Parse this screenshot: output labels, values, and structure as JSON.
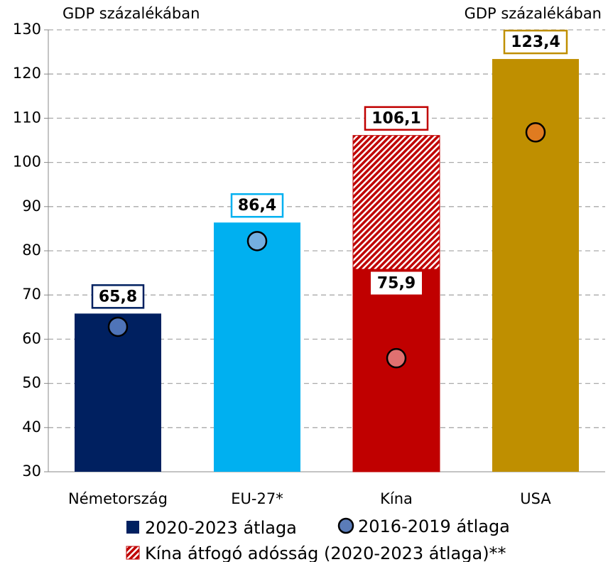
{
  "chart_data": {
    "type": "bar",
    "annotations": [
      "GDP százalékában",
      "GDP százalékában"
    ],
    "categories": [
      "Németország",
      "EU-27*",
      "Kína",
      "USA"
    ],
    "series": [
      {
        "name": "2020-2023 átlaga",
        "kind": "bar",
        "color": "#002060",
        "colors": [
          "#002060",
          "#00b0f0",
          "#c00000",
          "#bf8f00"
        ],
        "values": [
          65.8,
          86.4,
          75.9,
          123.4
        ],
        "value_labels": [
          "65,8",
          "86,4",
          "75,9",
          "123,4"
        ]
      },
      {
        "name": "2016-2019 átlaga",
        "kind": "dot",
        "color": "#5b7cb8",
        "colors": [
          "#4f74b8",
          "#74aee0",
          "#e07070",
          "#e07b20"
        ],
        "values": [
          62.8,
          82.2,
          55.7,
          106.8
        ]
      },
      {
        "name": "Kína átfogó adósság (2020-2023 átlaga)**",
        "kind": "hatched",
        "color": "#c00000",
        "values": [
          null,
          null,
          106.1,
          null
        ],
        "value_labels": [
          null,
          null,
          "106,1",
          null
        ]
      }
    ],
    "ylim": [
      30,
      130
    ],
    "yticks": [
      30,
      40,
      50,
      60,
      70,
      80,
      90,
      100,
      110,
      120,
      130
    ],
    "grid": true
  }
}
